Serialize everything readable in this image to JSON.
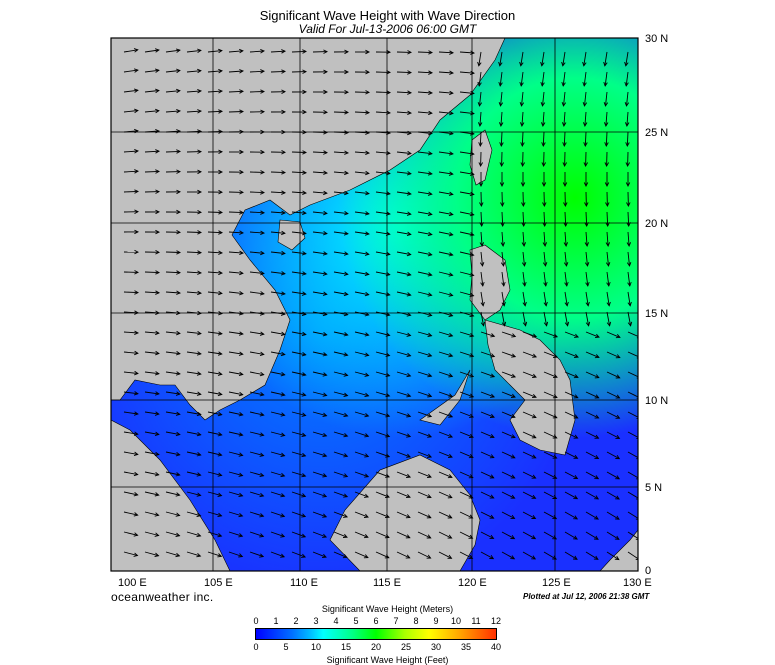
{
  "header": {
    "title": "Significant Wave Height with Wave Direction",
    "subtitle": "Valid For Jul-13-2006 06:00 GMT"
  },
  "map": {
    "lon_labels": [
      "100 E",
      "105 E",
      "110 E",
      "115 E",
      "120 E",
      "125 E",
      "130 E"
    ],
    "lat_labels": [
      "30 N",
      "25 N",
      "20 N",
      "15 N",
      "10 N",
      "5 N",
      "0"
    ],
    "land_color": "#c0c0c0",
    "ocean_low_color": "#0000ff",
    "ocean_high_color": "#00ff00"
  },
  "footer": {
    "brand": "oceanweather inc.",
    "plotted": "Plotted at Jul 12, 2006 21:38 GMT"
  },
  "legend": {
    "meters_title": "Significant Wave Height (Meters)",
    "feet_title": "Significant Wave Height (Feet)",
    "meters_ticks": [
      "0",
      "1",
      "2",
      "3",
      "4",
      "5",
      "6",
      "7",
      "8",
      "9",
      "10",
      "11",
      "12"
    ],
    "feet_ticks": [
      "0",
      "5",
      "10",
      "15",
      "20",
      "25",
      "30",
      "35",
      "40"
    ]
  }
}
